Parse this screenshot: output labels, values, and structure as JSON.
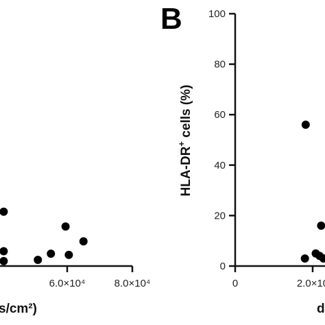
{
  "chart_data": [
    {
      "type": "scatter",
      "panel": "",
      "xlabel_visible": "s/cm²)",
      "ylabel": "",
      "x_ticks": [
        {
          "value": 60000,
          "label": "6.0×10⁴"
        },
        {
          "value": 80000,
          "label": "8.0×10⁴"
        }
      ],
      "xlim": [
        40000,
        85000
      ],
      "ylim": [
        0,
        100
      ],
      "grid": false,
      "marker_color": "#000000",
      "points": [
        {
          "x": 40500,
          "y": 22
        },
        {
          "x": 40500,
          "y": 6
        },
        {
          "x": 40500,
          "y": 2
        },
        {
          "x": 51000,
          "y": 2.5
        },
        {
          "x": 55000,
          "y": 5
        },
        {
          "x": 59500,
          "y": 16
        },
        {
          "x": 60500,
          "y": 4.5
        },
        {
          "x": 65000,
          "y": 10
        }
      ]
    },
    {
      "type": "scatter",
      "panel": "B",
      "ylabel_text": "HLA-DR",
      "ylabel_superscript": "+",
      "ylabel_rest": " cells (%)",
      "xlabel_visible": "d",
      "ylim": [
        0,
        100
      ],
      "y_ticks": [
        "0",
        "20",
        "40",
        "60",
        "80",
        "100"
      ],
      "y_tick_values": [
        0,
        20,
        40,
        60,
        80,
        100
      ],
      "x_ticks": [
        {
          "value": 0,
          "label": "0"
        },
        {
          "value": 20000,
          "label": "2.0×10"
        }
      ],
      "xlim": [
        0,
        25000
      ],
      "grid": false,
      "marker_color": "#000000",
      "points": [
        {
          "x": 18200,
          "y": 56
        },
        {
          "x": 18000,
          "y": 3
        },
        {
          "x": 20800,
          "y": 5
        },
        {
          "x": 21800,
          "y": 4
        },
        {
          "x": 22200,
          "y": 16
        },
        {
          "x": 22800,
          "y": 3
        }
      ]
    }
  ]
}
